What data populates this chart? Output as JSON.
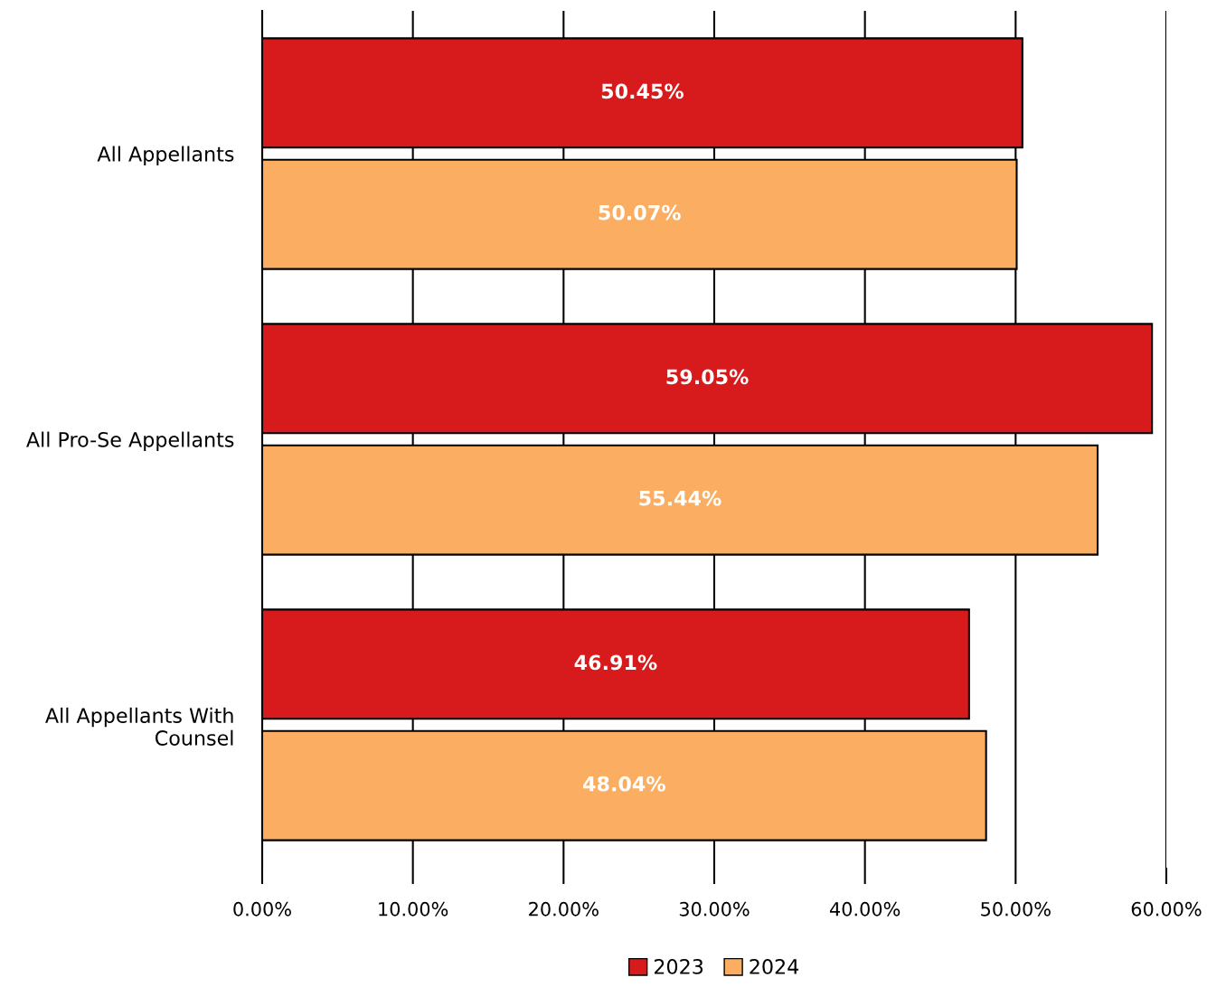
{
  "chart_data": {
    "type": "bar",
    "orientation": "horizontal",
    "categories": [
      "All Appellants",
      "All Pro-Se Appellants",
      "All Appellants With\nCounsel"
    ],
    "series": [
      {
        "name": "2023",
        "color": "#d71a1c",
        "values": [
          50.45,
          59.05,
          46.91
        ],
        "value_labels": [
          "50.45%",
          "59.05%",
          "46.91%"
        ]
      },
      {
        "name": "2024",
        "color": "#fbae62",
        "values": [
          50.07,
          55.44,
          48.04
        ],
        "value_labels": [
          "50.07%",
          "55.44%",
          "48.04%"
        ]
      }
    ],
    "xlim": [
      0,
      60
    ],
    "xticks": [
      {
        "value": 0,
        "label": "0.00%"
      },
      {
        "value": 10,
        "label": "10.00%"
      },
      {
        "value": 20,
        "label": "20.00%"
      },
      {
        "value": 30,
        "label": "30.00%"
      },
      {
        "value": 40,
        "label": "40.00%"
      },
      {
        "value": 50,
        "label": "50.00%"
      },
      {
        "value": 60,
        "label": "60.00%"
      }
    ],
    "grid": "x",
    "legend": "bottom"
  }
}
